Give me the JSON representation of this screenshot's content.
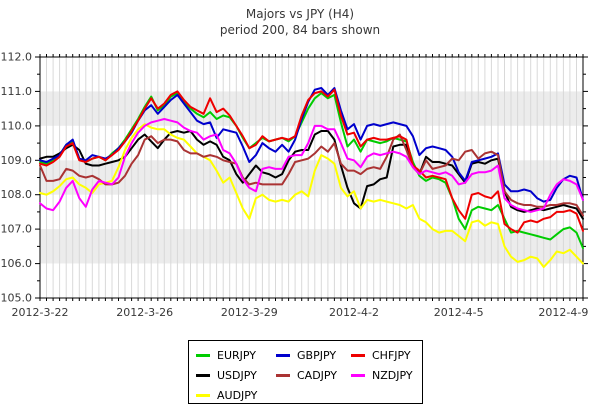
{
  "header": {
    "title_line1": "Majors vs JPY (H4)",
    "title_line2": "period 200, 84 bars shown"
  },
  "chart_data": {
    "type": "line",
    "title": "Majors vs JPY (H4)",
    "subtitle": "period 200, 84 bars shown",
    "n_bars": 84,
    "ylim": [
      105.0,
      112.0
    ],
    "y_tick_step": 1.0,
    "y_minor_step": 0.5,
    "y_tick_labels": [
      "105.0",
      "106.0",
      "107.0",
      "108.0",
      "109.0",
      "110.0",
      "111.0",
      "112.0"
    ],
    "x_tick_labels": [
      "2012-3-22",
      "2012-3-26",
      "2012-3-29",
      "2012-4-2",
      "2012-4-5",
      "2012-4-9"
    ],
    "x_tick_bars": [
      0,
      16,
      32,
      48,
      64,
      80
    ],
    "gray_bands": [
      [
        106,
        107
      ],
      [
        108,
        109
      ],
      [
        110,
        111
      ]
    ],
    "band_color": "#ececec",
    "grid_color": "#d9d9d9",
    "axis_color": "#000000",
    "label_color": "#383838",
    "legend_position": "bottom-center",
    "series": [
      {
        "name": "EURJPY",
        "color": "#00cc00",
        "values": [
          108.95,
          108.9,
          109.0,
          109.15,
          109.45,
          109.55,
          109.05,
          108.95,
          109.05,
          109.1,
          109.0,
          109.2,
          109.35,
          109.6,
          109.9,
          110.2,
          110.55,
          110.85,
          110.45,
          110.6,
          110.85,
          110.95,
          110.7,
          110.5,
          110.35,
          110.25,
          110.4,
          110.2,
          110.3,
          110.25,
          110.0,
          109.65,
          109.35,
          109.5,
          109.65,
          109.55,
          109.6,
          109.65,
          109.55,
          109.7,
          110.1,
          110.5,
          110.8,
          110.95,
          110.8,
          110.9,
          110.1,
          109.4,
          109.6,
          109.25,
          109.6,
          109.55,
          109.5,
          109.55,
          109.65,
          109.6,
          109.55,
          108.95,
          108.55,
          108.4,
          108.5,
          108.45,
          108.35,
          107.9,
          107.3,
          107.0,
          107.55,
          107.65,
          107.6,
          107.55,
          107.7,
          107.3,
          106.9,
          106.95,
          106.9,
          106.85,
          106.8,
          106.75,
          106.7,
          106.85,
          107.0,
          107.05,
          106.9,
          106.45
        ]
      },
      {
        "name": "USDJPY",
        "color": "#000000",
        "values": [
          109.05,
          109.1,
          109.1,
          109.2,
          109.35,
          109.45,
          109.3,
          108.9,
          108.85,
          108.85,
          108.9,
          108.95,
          109.0,
          109.1,
          109.35,
          109.6,
          109.75,
          109.55,
          109.35,
          109.6,
          109.8,
          109.85,
          109.8,
          109.85,
          109.6,
          109.45,
          109.55,
          109.45,
          109.1,
          109.0,
          108.6,
          108.35,
          108.6,
          108.85,
          108.65,
          108.6,
          108.5,
          108.6,
          109.0,
          109.25,
          109.3,
          109.3,
          109.75,
          109.85,
          109.85,
          109.6,
          108.85,
          108.2,
          107.75,
          107.6,
          108.25,
          108.3,
          108.45,
          108.5,
          109.4,
          109.45,
          109.45,
          108.85,
          108.6,
          109.1,
          108.95,
          108.95,
          108.9,
          108.85,
          108.6,
          108.35,
          108.9,
          108.95,
          108.9,
          109.0,
          109.05,
          108.1,
          107.65,
          107.55,
          107.5,
          107.55,
          107.6,
          107.55,
          107.6,
          107.65,
          107.7,
          107.65,
          107.6,
          107.3
        ]
      },
      {
        "name": "AUDJPY",
        "color": "#ffff00",
        "values": [
          108.05,
          108.0,
          108.1,
          108.25,
          108.45,
          108.5,
          108.3,
          108.2,
          108.05,
          108.3,
          108.35,
          108.4,
          108.8,
          109.3,
          109.65,
          109.9,
          110.05,
          109.95,
          109.9,
          109.9,
          109.75,
          109.65,
          109.6,
          109.4,
          109.2,
          109.1,
          109.0,
          108.7,
          108.35,
          108.5,
          108.05,
          107.6,
          107.3,
          107.9,
          108.0,
          107.85,
          107.8,
          107.85,
          107.8,
          108.0,
          108.1,
          107.95,
          108.7,
          109.15,
          109.05,
          108.9,
          108.2,
          107.95,
          108.1,
          107.6,
          107.85,
          107.8,
          107.85,
          107.8,
          107.75,
          107.7,
          107.6,
          107.7,
          107.3,
          107.2,
          107.0,
          106.9,
          106.95,
          106.95,
          106.8,
          106.65,
          107.2,
          107.25,
          107.1,
          107.2,
          107.15,
          106.5,
          106.2,
          106.05,
          106.1,
          106.2,
          106.15,
          105.9,
          106.1,
          106.35,
          106.3,
          106.4,
          106.2,
          106.0
        ]
      },
      {
        "name": "GBPJPY",
        "color": "#0000cc",
        "values": [
          109.0,
          108.95,
          109.05,
          109.15,
          109.45,
          109.6,
          109.05,
          109.0,
          109.15,
          109.1,
          109.05,
          109.15,
          109.35,
          109.55,
          109.8,
          110.15,
          110.45,
          110.6,
          110.35,
          110.55,
          110.75,
          110.9,
          110.65,
          110.4,
          110.15,
          110.05,
          110.1,
          109.65,
          109.9,
          109.85,
          109.8,
          109.4,
          108.95,
          109.15,
          109.5,
          109.35,
          109.25,
          109.45,
          109.25,
          109.6,
          110.2,
          110.7,
          111.05,
          111.1,
          110.9,
          111.1,
          110.45,
          109.9,
          110.05,
          109.6,
          110.0,
          110.05,
          110.0,
          110.05,
          110.1,
          110.05,
          110.0,
          109.7,
          109.15,
          109.35,
          109.4,
          109.35,
          109.3,
          109.1,
          108.65,
          108.4,
          108.95,
          109.0,
          109.05,
          109.1,
          109.2,
          108.3,
          108.1,
          108.1,
          108.15,
          108.1,
          107.9,
          107.8,
          107.85,
          108.2,
          108.45,
          108.55,
          108.5,
          107.85
        ]
      },
      {
        "name": "CADJPY",
        "color": "#aa3333",
        "values": [
          108.85,
          108.4,
          108.4,
          108.45,
          108.75,
          108.7,
          108.55,
          108.5,
          108.55,
          108.45,
          108.3,
          108.3,
          108.35,
          108.55,
          108.9,
          109.15,
          109.6,
          109.7,
          109.5,
          109.6,
          109.6,
          109.55,
          109.3,
          109.2,
          109.2,
          109.1,
          109.15,
          109.1,
          109.0,
          108.95,
          108.9,
          108.5,
          108.3,
          108.35,
          108.3,
          108.3,
          108.3,
          108.3,
          108.6,
          108.95,
          109.0,
          109.05,
          109.2,
          109.4,
          109.25,
          109.5,
          108.9,
          108.7,
          108.7,
          108.6,
          108.75,
          108.8,
          108.75,
          109.1,
          109.6,
          109.75,
          109.3,
          108.8,
          108.6,
          109.0,
          108.75,
          108.8,
          108.85,
          109.05,
          109.0,
          109.25,
          109.3,
          109.05,
          109.2,
          109.25,
          109.15,
          108.1,
          107.85,
          107.75,
          107.7,
          107.7,
          107.65,
          107.65,
          107.7,
          107.7,
          107.75,
          107.75,
          107.7,
          107.4
        ]
      },
      {
        "name": "CHFJPY",
        "color": "#ee0000",
        "values": [
          108.9,
          108.85,
          108.95,
          109.1,
          109.4,
          109.5,
          109.0,
          108.95,
          109.05,
          109.1,
          109.0,
          109.15,
          109.3,
          109.55,
          109.85,
          110.15,
          110.5,
          110.8,
          110.5,
          110.65,
          110.9,
          111.0,
          110.75,
          110.55,
          110.45,
          110.35,
          110.8,
          110.4,
          110.5,
          110.3,
          110.0,
          109.7,
          109.35,
          109.45,
          109.7,
          109.55,
          109.6,
          109.65,
          109.6,
          109.7,
          110.3,
          110.75,
          110.95,
          111.0,
          110.85,
          111.05,
          110.3,
          109.75,
          109.8,
          109.4,
          109.6,
          109.65,
          109.6,
          109.6,
          109.65,
          109.7,
          109.6,
          108.85,
          108.7,
          108.5,
          108.55,
          108.5,
          108.45,
          107.9,
          107.55,
          107.3,
          108.0,
          108.05,
          107.95,
          107.9,
          108.1,
          107.15,
          107.0,
          106.9,
          107.2,
          107.25,
          107.2,
          107.3,
          107.35,
          107.5,
          107.5,
          107.55,
          107.45,
          106.95
        ]
      },
      {
        "name": "NZDJPY",
        "color": "#ff00ff",
        "values": [
          107.75,
          107.6,
          107.55,
          107.8,
          108.2,
          108.4,
          107.9,
          107.65,
          108.15,
          108.4,
          108.35,
          108.3,
          108.5,
          109.1,
          109.5,
          109.8,
          110.0,
          110.1,
          110.15,
          110.2,
          110.15,
          110.1,
          109.95,
          109.85,
          109.8,
          109.6,
          109.7,
          109.75,
          109.3,
          109.2,
          108.9,
          108.45,
          108.2,
          108.1,
          108.75,
          108.8,
          108.75,
          108.75,
          109.1,
          109.15,
          109.15,
          109.5,
          110.0,
          110.0,
          109.9,
          109.9,
          109.5,
          109.05,
          109.0,
          108.8,
          109.1,
          109.2,
          109.15,
          109.2,
          109.25,
          109.2,
          109.1,
          108.8,
          108.6,
          108.7,
          108.65,
          108.6,
          108.65,
          108.55,
          108.3,
          108.35,
          108.6,
          108.65,
          108.65,
          108.7,
          108.85,
          107.9,
          107.7,
          107.6,
          107.55,
          107.5,
          107.55,
          107.6,
          108.0,
          108.3,
          108.45,
          108.4,
          108.3,
          107.85
        ]
      }
    ]
  }
}
